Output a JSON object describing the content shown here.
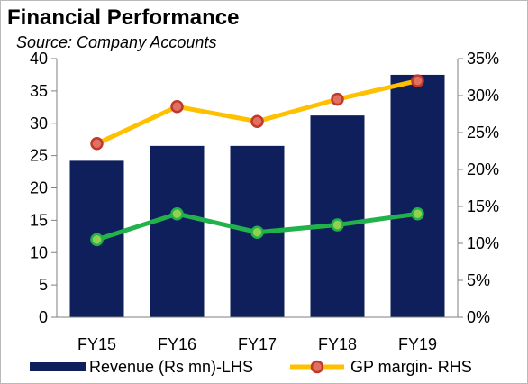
{
  "chart_data": {
    "type": "bar",
    "title": "Financial Performance",
    "subtitle": "Source: Company Accounts",
    "categories": [
      "FY15",
      "FY16",
      "FY17",
      "FY18",
      "FY19"
    ],
    "series": [
      {
        "name": "Revenue (Rs mn)-LHS",
        "type": "bar",
        "axis": "left",
        "color": "#0f1f5c",
        "values": [
          24.2,
          26.5,
          26.5,
          31.2,
          37.5
        ]
      },
      {
        "name": "GP margin- RHS",
        "type": "line",
        "axis": "right",
        "color": "#ffc000",
        "marker_fill": "#e07060",
        "marker_edge": "#c0392b",
        "values": [
          23.5,
          28.5,
          26.5,
          29.5,
          32.0
        ]
      },
      {
        "type": "line",
        "axis": "right",
        "color": "#21b24b",
        "marker_fill": "#92d050",
        "values": [
          10.5,
          14.0,
          11.5,
          12.5,
          14.0
        ]
      }
    ],
    "y_left": {
      "ylim": [
        0,
        40
      ],
      "ticks": [
        "0",
        "5",
        "10",
        "15",
        "20",
        "25",
        "30",
        "35",
        "40"
      ]
    },
    "y_right": {
      "ylim": [
        0,
        35
      ],
      "ticks": [
        "0%",
        "5%",
        "10%",
        "15%",
        "20%",
        "25%",
        "30%",
        "35%"
      ]
    },
    "grid": false,
    "legend_position": "bottom"
  }
}
